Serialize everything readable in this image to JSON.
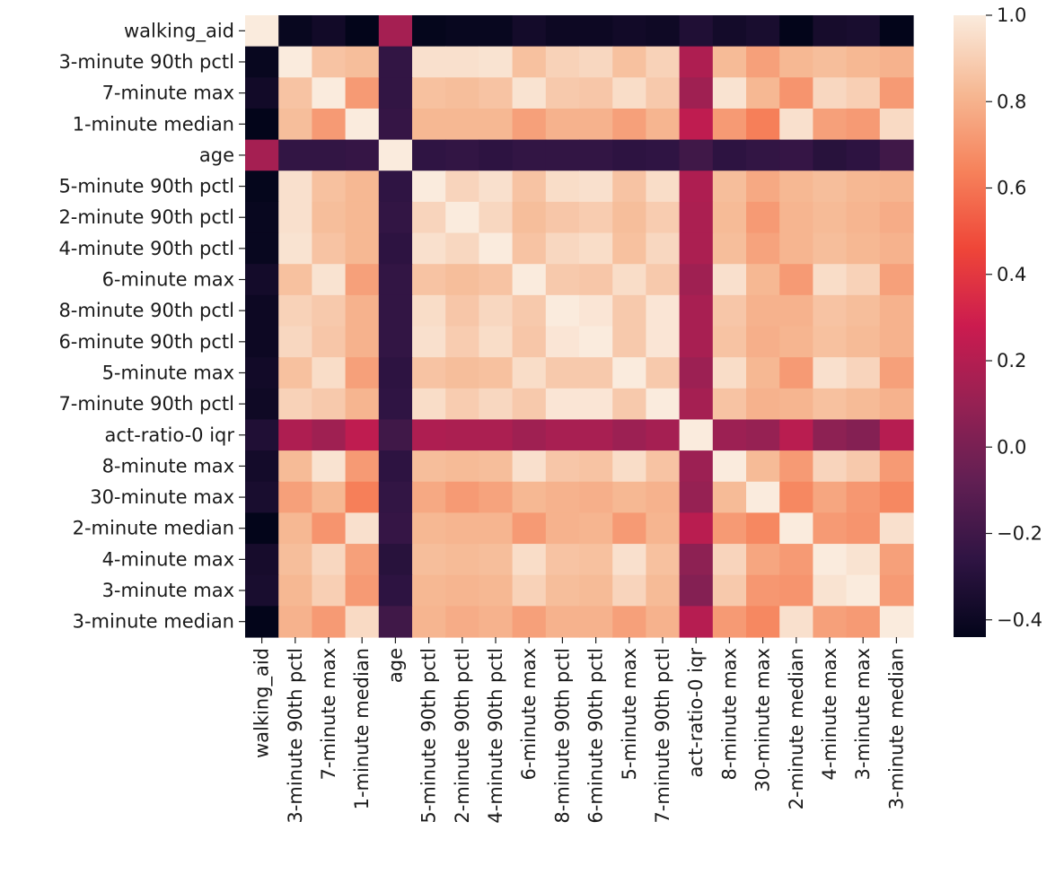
{
  "chart_data": {
    "type": "heatmap",
    "title": "",
    "xlabel": "",
    "ylabel": "",
    "labels": [
      "walking_aid",
      "3-minute 90th pctl",
      "7-minute max",
      "1-minute median",
      "age",
      "5-minute 90th pctl",
      "2-minute 90th pctl",
      "4-minute 90th pctl",
      "6-minute max",
      "8-minute 90th pctl",
      "6-minute 90th pctl",
      "5-minute max",
      "7-minute 90th pctl",
      "act-ratio-0 iqr",
      "8-minute max",
      "30-minute max",
      "2-minute median",
      "4-minute max",
      "3-minute max",
      "3-minute median"
    ],
    "colorbar": {
      "min": -0.44,
      "max": 1.0,
      "ticks": [
        1.0,
        0.8,
        0.6,
        0.4,
        0.2,
        0.0,
        -0.2,
        -0.4
      ],
      "tick_labels": [
        "1.0",
        "0.8",
        "0.6",
        "0.4",
        "0.2",
        "0.0",
        "−0.2",
        "−0.4"
      ]
    },
    "matrix": [
      [
        1.0,
        -0.42,
        -0.38,
        -0.44,
        0.15,
        -0.43,
        -0.42,
        -0.42,
        -0.37,
        -0.4,
        -0.4,
        -0.38,
        -0.39,
        -0.32,
        -0.37,
        -0.35,
        -0.44,
        -0.36,
        -0.35,
        -0.44
      ],
      [
        -0.42,
        1.0,
        0.86,
        0.84,
        -0.25,
        0.96,
        0.96,
        0.97,
        0.85,
        0.91,
        0.93,
        0.85,
        0.91,
        0.18,
        0.83,
        0.74,
        0.82,
        0.84,
        0.82,
        0.8
      ],
      [
        -0.38,
        0.86,
        1.0,
        0.72,
        -0.25,
        0.85,
        0.84,
        0.86,
        0.97,
        0.88,
        0.87,
        0.95,
        0.88,
        0.13,
        0.97,
        0.82,
        0.7,
        0.93,
        0.9,
        0.72
      ],
      [
        -0.44,
        0.84,
        0.72,
        1.0,
        -0.24,
        0.82,
        0.82,
        0.82,
        0.74,
        0.8,
        0.8,
        0.74,
        0.81,
        0.24,
        0.72,
        0.63,
        0.96,
        0.74,
        0.72,
        0.94
      ],
      [
        0.15,
        -0.25,
        -0.25,
        -0.24,
        1.0,
        -0.26,
        -0.25,
        -0.27,
        -0.25,
        -0.25,
        -0.25,
        -0.27,
        -0.26,
        -0.2,
        -0.27,
        -0.25,
        -0.24,
        -0.29,
        -0.27,
        -0.2
      ],
      [
        -0.43,
        0.96,
        0.85,
        0.82,
        -0.26,
        1.0,
        0.92,
        0.96,
        0.86,
        0.95,
        0.96,
        0.86,
        0.95,
        0.18,
        0.84,
        0.77,
        0.82,
        0.84,
        0.82,
        0.81
      ],
      [
        -0.42,
        0.96,
        0.84,
        0.82,
        -0.25,
        0.92,
        1.0,
        0.93,
        0.84,
        0.87,
        0.89,
        0.84,
        0.89,
        0.17,
        0.83,
        0.72,
        0.81,
        0.83,
        0.81,
        0.78
      ],
      [
        -0.42,
        0.97,
        0.86,
        0.82,
        -0.27,
        0.96,
        0.93,
        1.0,
        0.86,
        0.93,
        0.95,
        0.85,
        0.93,
        0.17,
        0.84,
        0.75,
        0.81,
        0.84,
        0.82,
        0.8
      ],
      [
        -0.37,
        0.85,
        0.97,
        0.74,
        -0.25,
        0.86,
        0.84,
        0.86,
        1.0,
        0.88,
        0.87,
        0.95,
        0.88,
        0.13,
        0.96,
        0.82,
        0.72,
        0.95,
        0.91,
        0.74
      ],
      [
        -0.4,
        0.91,
        0.88,
        0.8,
        -0.25,
        0.95,
        0.87,
        0.93,
        0.88,
        1.0,
        0.98,
        0.88,
        0.98,
        0.16,
        0.87,
        0.8,
        0.8,
        0.86,
        0.84,
        0.8
      ],
      [
        -0.4,
        0.93,
        0.87,
        0.8,
        -0.25,
        0.96,
        0.89,
        0.95,
        0.87,
        0.98,
        1.0,
        0.88,
        0.98,
        0.16,
        0.86,
        0.79,
        0.81,
        0.85,
        0.83,
        0.8
      ],
      [
        -0.38,
        0.85,
        0.95,
        0.74,
        -0.27,
        0.86,
        0.84,
        0.85,
        0.95,
        0.88,
        0.88,
        1.0,
        0.88,
        0.12,
        0.95,
        0.82,
        0.72,
        0.96,
        0.92,
        0.74
      ],
      [
        -0.39,
        0.91,
        0.88,
        0.81,
        -0.26,
        0.95,
        0.89,
        0.93,
        0.88,
        0.98,
        0.98,
        0.88,
        1.0,
        0.15,
        0.86,
        0.8,
        0.81,
        0.85,
        0.83,
        0.8
      ],
      [
        -0.32,
        0.18,
        0.13,
        0.24,
        -0.2,
        0.18,
        0.17,
        0.17,
        0.13,
        0.16,
        0.16,
        0.12,
        0.15,
        1.0,
        0.12,
        0.1,
        0.22,
        0.07,
        0.04,
        0.21
      ],
      [
        -0.37,
        0.83,
        0.97,
        0.72,
        -0.27,
        0.84,
        0.83,
        0.84,
        0.96,
        0.87,
        0.86,
        0.95,
        0.86,
        0.12,
        1.0,
        0.83,
        0.72,
        0.92,
        0.88,
        0.72
      ],
      [
        -0.35,
        0.74,
        0.82,
        0.63,
        -0.25,
        0.77,
        0.72,
        0.75,
        0.82,
        0.8,
        0.79,
        0.82,
        0.8,
        0.1,
        0.83,
        1.0,
        0.66,
        0.76,
        0.71,
        0.66
      ],
      [
        -0.44,
        0.82,
        0.7,
        0.96,
        -0.24,
        0.82,
        0.81,
        0.81,
        0.72,
        0.8,
        0.81,
        0.72,
        0.81,
        0.22,
        0.72,
        0.66,
        1.0,
        0.72,
        0.7,
        0.96
      ],
      [
        -0.36,
        0.84,
        0.93,
        0.74,
        -0.29,
        0.84,
        0.83,
        0.84,
        0.95,
        0.86,
        0.85,
        0.96,
        0.85,
        0.07,
        0.92,
        0.76,
        0.72,
        1.0,
        0.97,
        0.74
      ],
      [
        -0.35,
        0.82,
        0.9,
        0.72,
        -0.27,
        0.82,
        0.81,
        0.82,
        0.91,
        0.84,
        0.83,
        0.92,
        0.83,
        0.04,
        0.88,
        0.71,
        0.7,
        0.97,
        1.0,
        0.72
      ],
      [
        -0.44,
        0.8,
        0.72,
        0.94,
        -0.2,
        0.81,
        0.78,
        0.8,
        0.74,
        0.8,
        0.8,
        0.74,
        0.8,
        0.21,
        0.72,
        0.66,
        0.96,
        0.74,
        0.72,
        1.0
      ]
    ]
  }
}
